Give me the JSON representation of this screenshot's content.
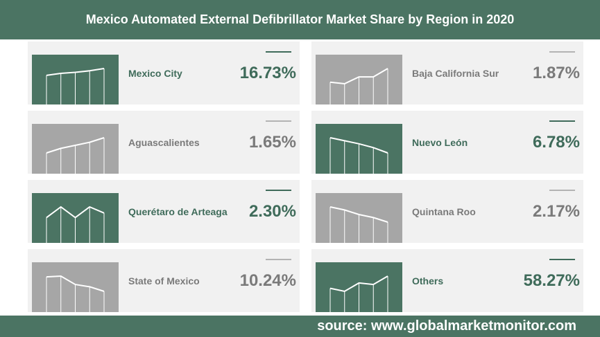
{
  "title": "Mexico Automated External Defibrillator Market Share by Region in 2020",
  "source": "source: www.globalmarketmonitor.com",
  "colors": {
    "accent": "#4b7463",
    "muted": "#a6a6a6",
    "card_bg": "#f1f1f1"
  },
  "chart_data": {
    "type": "table",
    "title": "Mexico Automated External Defibrillator Market Share by Region in 2020",
    "unit": "%",
    "rows": [
      {
        "region": "Mexico City",
        "value": 16.73,
        "label": "16.73%",
        "highlight": true,
        "trend": [
          0.55,
          0.68,
          0.75,
          0.85,
          1.0
        ]
      },
      {
        "region": "Baja California Sur",
        "value": 1.87,
        "label": "1.87%",
        "highlight": false,
        "trend": [
          0.1,
          0.0,
          0.45,
          0.45,
          1.0
        ]
      },
      {
        "region": "Aguascalientes",
        "value": 1.65,
        "label": "1.65%",
        "highlight": false,
        "trend": [
          0.0,
          0.3,
          0.5,
          0.7,
          1.0
        ]
      },
      {
        "region": "Nuevo León",
        "value": 6.78,
        "label": "6.78%",
        "highlight": true,
        "trend": [
          1.0,
          0.8,
          0.6,
          0.35,
          0.0
        ]
      },
      {
        "region": "Querétaro de Arteaga",
        "value": 2.3,
        "label": "2.30%",
        "highlight": true,
        "trend": [
          0.3,
          1.0,
          0.3,
          1.0,
          0.6
        ]
      },
      {
        "region": "Quintana Roo",
        "value": 2.17,
        "label": "2.17%",
        "highlight": false,
        "trend": [
          1.0,
          0.8,
          0.5,
          0.3,
          0.0
        ]
      },
      {
        "region": "State of Mexico",
        "value": 10.24,
        "label": "10.24%",
        "highlight": false,
        "trend": [
          0.95,
          1.0,
          0.45,
          0.3,
          0.0
        ]
      },
      {
        "region": "Others",
        "value": 58.27,
        "label": "58.27%",
        "highlight": true,
        "trend": [
          0.2,
          0.0,
          0.55,
          0.45,
          1.0
        ]
      }
    ]
  }
}
